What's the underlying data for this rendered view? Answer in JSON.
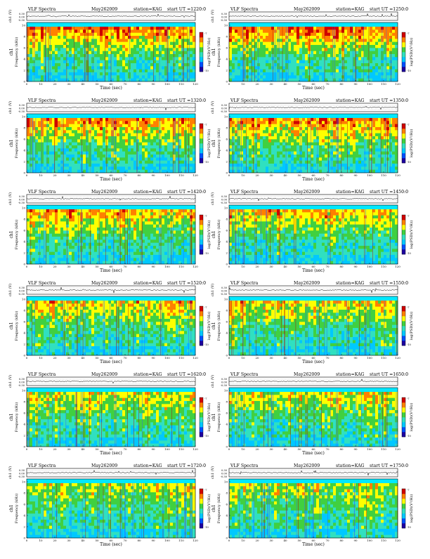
{
  "common": {
    "title": "VLF Spectra",
    "date": "May262009",
    "station": "station=KAG",
    "start_label": "start UT =",
    "xlabel": "Time (sec)",
    "ylabel_top": "ch1 (V)",
    "ylabel_spec": "Frequency (kHz)",
    "ylabel_spec_ch": "ch1",
    "cbar_label": "log(PSD)(V²/Hz)",
    "cbar_ticks": [
      "-7",
      "-10"
    ],
    "x_ticks": [
      "0",
      "10",
      "20",
      "30",
      "40",
      "50",
      "60",
      "70",
      "80",
      "90",
      "100",
      "110",
      "120"
    ],
    "y_ticks": [
      "0",
      "2",
      "4",
      "6",
      "8",
      "10"
    ],
    "top_ticks": [
      "0.30",
      "0.00",
      "-0.30"
    ]
  },
  "panels": [
    {
      "start_ut": "1220:0"
    },
    {
      "start_ut": "1250:0"
    },
    {
      "start_ut": "1320:0"
    },
    {
      "start_ut": "1350:0"
    },
    {
      "start_ut": "1420:0"
    },
    {
      "start_ut": "1450:0"
    },
    {
      "start_ut": "1520:0"
    },
    {
      "start_ut": "1550:0"
    },
    {
      "start_ut": "1620:0"
    },
    {
      "start_ut": "1650:0"
    },
    {
      "start_ut": "1720:0"
    },
    {
      "start_ut": "1750:0"
    }
  ],
  "chart_data": {
    "type": "heatmap",
    "x_range": [
      0,
      120
    ],
    "y_range_khz": [
      0,
      10
    ],
    "top_trace_range_v": [
      -0.3,
      0.3
    ],
    "cbar_range": [
      -10,
      -7
    ],
    "colormap": [
      "#1e00a0",
      "#0050ff",
      "#00c8ff",
      "#30e0c0",
      "#40d040",
      "#ffff00",
      "#ff8000",
      "#d00000"
    ],
    "layout": "6 rows x 2 columns"
  }
}
